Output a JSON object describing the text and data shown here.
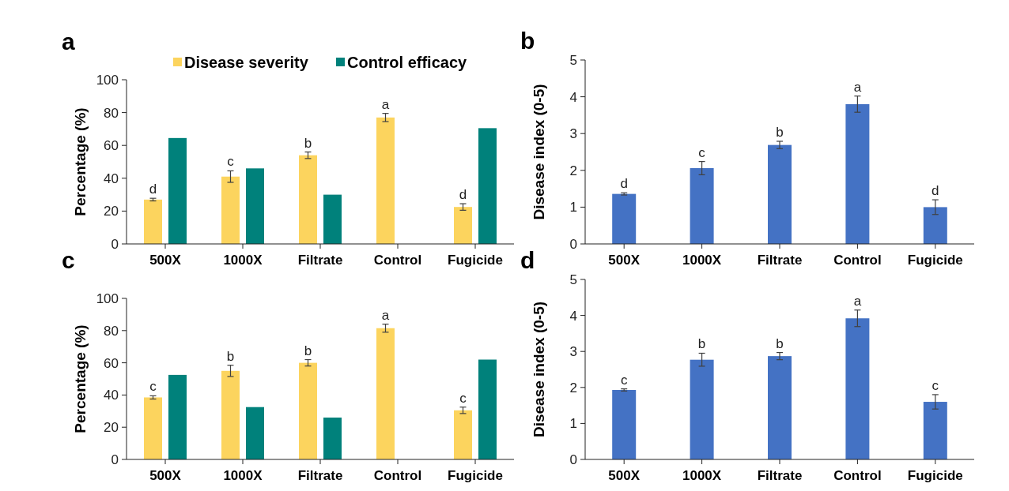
{
  "chart_data": [
    {
      "type": "bar",
      "title": "a",
      "ylabel": "Percentage (%)",
      "categories": [
        "500X",
        "1000X",
        "Filtrate",
        "Control",
        "Fugicide"
      ],
      "ylim": [
        0,
        100
      ],
      "yticks": [
        0,
        20,
        40,
        60,
        80,
        100
      ],
      "legend": "top",
      "series": [
        {
          "name": "Disease severity",
          "color": "#fcd45e",
          "values": [
            27,
            41,
            54,
            77,
            22.5
          ],
          "errors": [
            0.8,
            3.5,
            2,
            2.5,
            2
          ]
        },
        {
          "name": "Control efficacy",
          "color": "#00817b",
          "values": [
            64.5,
            46,
            30,
            0,
            70.5
          ]
        }
      ],
      "annotations": [
        {
          "text": "d",
          "x": "500X",
          "y": 27
        },
        {
          "text": "c",
          "x": "1000X",
          "y": 41
        },
        {
          "text": "b",
          "x": "Filtrate",
          "y": 54
        },
        {
          "text": "a",
          "x": "Control",
          "y": 77
        },
        {
          "text": "d",
          "x": "Fugicide",
          "y": 22.5
        }
      ]
    },
    {
      "type": "bar",
      "title": "b",
      "ylabel": "Disease index (0-5)",
      "categories": [
        "500X",
        "1000X",
        "Filtrate",
        "Control",
        "Fugicide"
      ],
      "ylim": [
        0,
        5
      ],
      "yticks": [
        0,
        1,
        2,
        3,
        4,
        5
      ],
      "series": [
        {
          "color": "#4472c4",
          "values": [
            1.36,
            2.06,
            2.69,
            3.8,
            1.0
          ],
          "errors": [
            0.03,
            0.18,
            0.1,
            0.22,
            0.2
          ]
        }
      ],
      "annotations": [
        {
          "text": "d",
          "x": "500X",
          "y": 1.36
        },
        {
          "text": "c",
          "x": "1000X",
          "y": 2.06
        },
        {
          "text": "b",
          "x": "Filtrate",
          "y": 2.69
        },
        {
          "text": "a",
          "x": "Control",
          "y": 3.8
        },
        {
          "text": "d",
          "x": "Fugicide",
          "y": 1.0
        }
      ]
    },
    {
      "type": "bar",
      "title": "c",
      "ylabel": "Percentage (%)",
      "categories": [
        "500X",
        "1000X",
        "Filtrate",
        "Control",
        "Fugicide"
      ],
      "ylim": [
        0,
        100
      ],
      "yticks": [
        0,
        20,
        40,
        60,
        80,
        100
      ],
      "series": [
        {
          "color": "#fcd45e",
          "values": [
            38.5,
            55,
            60,
            81.5,
            30.5
          ],
          "errors": [
            1,
            3.5,
            2,
            2.5,
            2
          ]
        },
        {
          "color": "#00817b",
          "values": [
            52.5,
            32.5,
            26,
            0,
            62
          ]
        }
      ],
      "annotations": [
        {
          "text": "c",
          "x": "500X",
          "y": 38.5
        },
        {
          "text": "b",
          "x": "1000X",
          "y": 55
        },
        {
          "text": "b",
          "x": "Filtrate",
          "y": 60
        },
        {
          "text": "a",
          "x": "Control",
          "y": 81.5
        },
        {
          "text": "c",
          "x": "Fugicide",
          "y": 30.5
        }
      ]
    },
    {
      "type": "bar",
      "title": "d",
      "ylabel": "Disease index (0-5)",
      "categories": [
        "500X",
        "1000X",
        "Filtrate",
        "Control",
        "Fugicide"
      ],
      "ylim": [
        0,
        5
      ],
      "yticks": [
        0,
        1,
        2,
        3,
        4,
        5
      ],
      "series": [
        {
          "color": "#4472c4",
          "values": [
            1.93,
            2.77,
            2.87,
            3.92,
            1.6
          ],
          "errors": [
            0.03,
            0.18,
            0.1,
            0.23,
            0.2
          ]
        }
      ],
      "annotations": [
        {
          "text": "c",
          "x": "500X",
          "y": 1.93
        },
        {
          "text": "b",
          "x": "1000X",
          "y": 2.77
        },
        {
          "text": "b",
          "x": "Filtrate",
          "y": 2.87
        },
        {
          "text": "a",
          "x": "Control",
          "y": 3.92
        },
        {
          "text": "c",
          "x": "Fugicide",
          "y": 1.6
        }
      ]
    }
  ]
}
